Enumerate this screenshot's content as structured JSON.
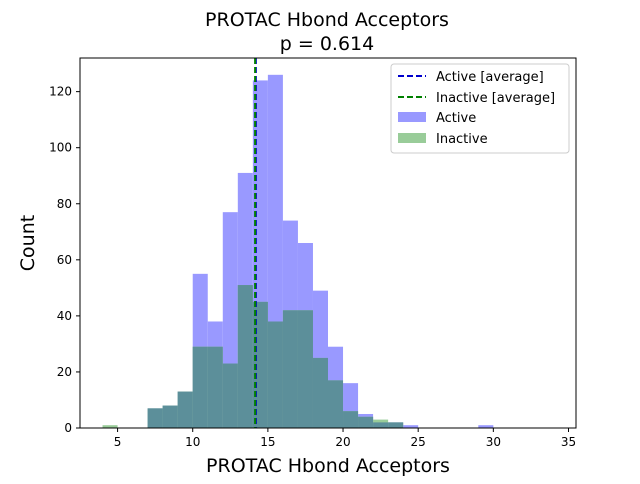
{
  "chart_data": {
    "type": "bar",
    "title": "PROTAC Hbond Acceptors",
    "subtitle": "p = 0.614",
    "xlabel": "PROTAC Hbond Acceptors",
    "ylabel": "Count",
    "xlim": [
      2.5,
      35.5
    ],
    "ylim": [
      0,
      132
    ],
    "xticks": [
      5,
      10,
      15,
      20,
      25,
      30,
      35
    ],
    "yticks": [
      0,
      20,
      40,
      60,
      80,
      100,
      120
    ],
    "bin_width": 1,
    "series": [
      {
        "name": "Active",
        "color": "#9999ff",
        "bins": [
          {
            "x0": 7,
            "value": 7
          },
          {
            "x0": 8,
            "value": 8
          },
          {
            "x0": 9,
            "value": 13
          },
          {
            "x0": 10,
            "value": 55
          },
          {
            "x0": 11,
            "value": 38
          },
          {
            "x0": 12,
            "value": 77
          },
          {
            "x0": 13,
            "value": 91
          },
          {
            "x0": 14,
            "value": 124
          },
          {
            "x0": 15,
            "value": 126
          },
          {
            "x0": 16,
            "value": 74
          },
          {
            "x0": 17,
            "value": 66
          },
          {
            "x0": 18,
            "value": 49
          },
          {
            "x0": 19,
            "value": 29
          },
          {
            "x0": 20,
            "value": 16
          },
          {
            "x0": 21,
            "value": 5
          },
          {
            "x0": 22,
            "value": 2
          },
          {
            "x0": 23,
            "value": 2
          },
          {
            "x0": 24,
            "value": 1
          },
          {
            "x0": 29,
            "value": 1
          }
        ]
      },
      {
        "name": "Inactive",
        "color": "#99cc99",
        "bins": [
          {
            "x0": 4,
            "value": 1
          },
          {
            "x0": 7,
            "value": 7
          },
          {
            "x0": 8,
            "value": 8
          },
          {
            "x0": 9,
            "value": 13
          },
          {
            "x0": 10,
            "value": 29
          },
          {
            "x0": 11,
            "value": 29
          },
          {
            "x0": 12,
            "value": 23
          },
          {
            "x0": 13,
            "value": 51
          },
          {
            "x0": 14,
            "value": 45
          },
          {
            "x0": 15,
            "value": 38
          },
          {
            "x0": 16,
            "value": 42
          },
          {
            "x0": 17,
            "value": 42
          },
          {
            "x0": 18,
            "value": 25
          },
          {
            "x0": 19,
            "value": 17
          },
          {
            "x0": 20,
            "value": 6
          },
          {
            "x0": 21,
            "value": 4
          },
          {
            "x0": 22,
            "value": 3
          },
          {
            "x0": 23,
            "value": 2
          }
        ]
      }
    ],
    "overlap_color": "#5c8f9a",
    "reference_lines": [
      {
        "name": "Active [average]",
        "x": 14.2,
        "color": "#0000cc"
      },
      {
        "name": "Inactive [average]",
        "x": 14.15,
        "color": "#008000"
      }
    ],
    "legend": {
      "placement": "top-right",
      "entries": [
        {
          "label": "Active [average]",
          "kind": "line",
          "color": "#0000cc"
        },
        {
          "label": "Inactive [average]",
          "kind": "line",
          "color": "#008000"
        },
        {
          "label": "Active",
          "kind": "patch",
          "color": "#9999ff"
        },
        {
          "label": "Inactive",
          "kind": "patch",
          "color": "#99cc99"
        }
      ]
    }
  }
}
